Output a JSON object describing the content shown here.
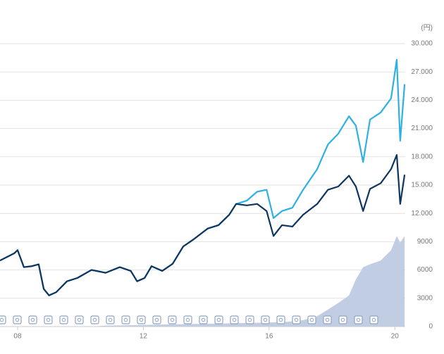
{
  "chart_data": {
    "type": "line",
    "y_unit": "(円)",
    "x": [
      2007.44,
      2007.89,
      2008.0,
      2008.2,
      2008.45,
      2008.67,
      2008.83,
      2009.0,
      2009.23,
      2009.57,
      2009.9,
      2010.35,
      2010.8,
      2011.25,
      2011.6,
      2011.8,
      2012.04,
      2012.26,
      2012.6,
      2012.93,
      2013.27,
      2013.6,
      2014.05,
      2014.39,
      2014.73,
      2014.95,
      2015.29,
      2015.62,
      2015.92,
      2016.14,
      2016.41,
      2016.74,
      2017.08,
      2017.53,
      2017.87,
      2018.2,
      2018.54,
      2018.76,
      2018.99,
      2019.21,
      2019.55,
      2019.88,
      2020.06,
      2020.17,
      2020.31
    ],
    "series": [
      {
        "color": "#2eb0e4",
        "values": [
          7000,
          7760,
          8100,
          6300,
          6400,
          6600,
          4000,
          3300,
          3650,
          4800,
          5150,
          6000,
          5700,
          6300,
          5900,
          4800,
          5150,
          6400,
          5900,
          6650,
          8500,
          9250,
          10400,
          10750,
          11850,
          13000,
          13350,
          14300,
          14500,
          11500,
          12250,
          12600,
          14500,
          16700,
          19300,
          20450,
          22300,
          21300,
          17450,
          21950,
          22700,
          24200,
          28300,
          19700,
          25700
        ]
      },
      {
        "color": "#0e3560",
        "values": [
          7000,
          7760,
          8100,
          6300,
          6400,
          6600,
          4000,
          3300,
          3650,
          4800,
          5150,
          6000,
          5700,
          6300,
          5900,
          4800,
          5150,
          6400,
          5900,
          6650,
          8500,
          9250,
          10400,
          10750,
          11850,
          13000,
          12850,
          13000,
          12250,
          9600,
          10750,
          10600,
          11850,
          13000,
          14500,
          14850,
          16000,
          14850,
          12250,
          14600,
          15200,
          16700,
          18200,
          13000,
          16100
        ]
      }
    ],
    "area": {
      "color": "#c0cde3",
      "values": [
        0,
        0,
        0,
        0,
        0,
        0,
        0,
        0,
        0,
        0,
        0,
        0,
        100,
        120,
        140,
        150,
        170,
        190,
        210,
        230,
        250,
        270,
        300,
        320,
        340,
        360,
        380,
        400,
        420,
        450,
        480,
        550,
        670,
        1100,
        1800,
        2500,
        3300,
        5000,
        6300,
        6600,
        7000,
        8100,
        9600,
        8900,
        9600
      ]
    },
    "xlim": [
      2007.44,
      2020.33
    ],
    "xticks": [
      {
        "value": 2008,
        "label": "08"
      },
      {
        "value": 2012,
        "label": "12"
      },
      {
        "value": 2016,
        "label": "16"
      },
      {
        "value": 2020,
        "label": "20"
      }
    ],
    "ylim": [
      0,
      30000
    ],
    "yticks": [
      0,
      3000,
      6000,
      9000,
      {
        "value": 12000,
        "label": "12.000"
      },
      {
        "value": 15000,
        "label": "15.000"
      },
      {
        "value": 18000,
        "label": "18.000"
      },
      {
        "value": 21000,
        "label": "21.000"
      },
      {
        "value": 24000,
        "label": "24.000"
      },
      {
        "value": 27000,
        "label": "27.000"
      },
      {
        "value": 30000,
        "label": "30.000"
      }
    ],
    "grid": true
  }
}
